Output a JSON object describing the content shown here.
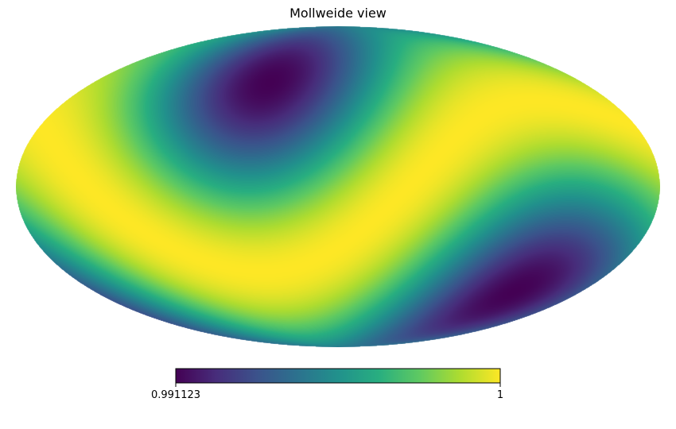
{
  "chart_data": {
    "type": "heatmap",
    "projection": "mollweide",
    "title": "Mollweide view",
    "field": {
      "description": "dipole-like sky map",
      "hot_lobes": [
        {
          "lon_deg": 0,
          "lat_deg": -10
        }
      ],
      "cold_spots": [
        {
          "lon_deg": 50,
          "lat_deg": 50
        },
        {
          "lon_deg": -110,
          "lat_deg": -40
        }
      ]
    },
    "colormap": "viridis",
    "colorbar": {
      "min": 0.991123,
      "max": 1,
      "min_label": "0.991123",
      "max_label": "1",
      "orientation": "horizontal"
    }
  }
}
